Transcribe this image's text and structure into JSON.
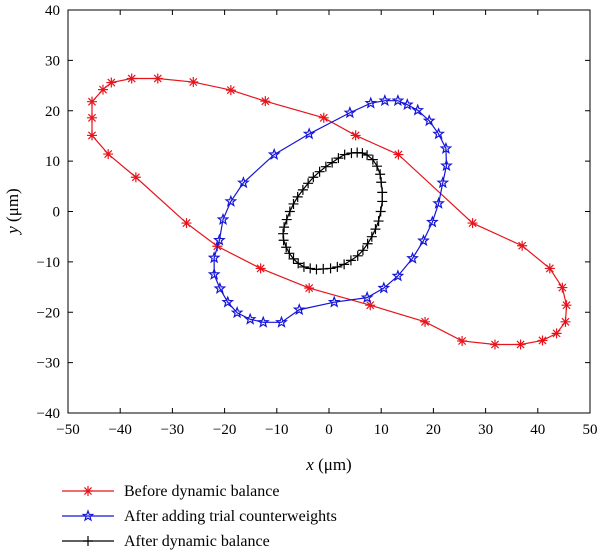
{
  "chart_data": {
    "type": "line",
    "title": "",
    "xlabel": {
      "var": "x",
      "unit": " (μm)"
    },
    "ylabel": {
      "var": "y",
      "unit": " (μm)"
    },
    "xlim": [
      -50,
      50
    ],
    "ylim": [
      -40,
      40
    ],
    "xticks": [
      -50,
      -40,
      -30,
      -20,
      -10,
      0,
      10,
      20,
      30,
      40,
      50
    ],
    "yticks": [
      -40,
      -30,
      -20,
      -10,
      0,
      10,
      20,
      30,
      40
    ],
    "xtick_labels": [
      "−50",
      "−40",
      "−30",
      "−20",
      "−10",
      "0",
      "10",
      "20",
      "30",
      "40",
      "50"
    ],
    "ytick_labels": [
      "−40",
      "−30",
      "−20",
      "−10",
      "0",
      "10",
      "20",
      "30",
      "40"
    ],
    "grid": false,
    "legend_position": "below",
    "series": [
      {
        "name": "Before dynamic balance",
        "color": "#e8141c",
        "marker": "asterisk",
        "points": [
          [
            45.5,
            -18.6
          ],
          [
            45.3,
            -21.9
          ],
          [
            44.7,
            -15.1
          ],
          [
            43.6,
            -24.2
          ],
          [
            42.3,
            -11.3
          ],
          [
            40.9,
            -25.6
          ],
          [
            37.0,
            -6.8
          ],
          [
            36.7,
            -26.4
          ],
          [
            31.8,
            -26.4
          ],
          [
            27.5,
            -2.3
          ],
          [
            25.5,
            -25.7
          ],
          [
            18.4,
            -21.9
          ],
          [
            13.3,
            11.3
          ],
          [
            7.9,
            -18.6
          ],
          [
            5.1,
            15.1
          ],
          [
            -1.0,
            18.6
          ],
          [
            -3.8,
            -15.2
          ],
          [
            -12.2,
            21.9
          ],
          [
            -13.1,
            -11.3
          ],
          [
            -18.8,
            24.1
          ],
          [
            -21.4,
            -6.9
          ],
          [
            -26.0,
            25.7
          ],
          [
            -27.3,
            -2.3
          ],
          [
            -32.8,
            26.4
          ],
          [
            -37.8,
            26.4
          ],
          [
            -37.0,
            6.8
          ],
          [
            -41.7,
            25.6
          ],
          [
            -42.3,
            11.4
          ],
          [
            -43.3,
            24.2
          ],
          [
            -45.4,
            15.1
          ],
          [
            -45.4,
            21.8
          ],
          [
            -45.4,
            18.6
          ]
        ]
      },
      {
        "name": "After adding trial counterweights",
        "color": "#1515d8",
        "marker": "star",
        "points": [
          [
            22.5,
            9.1
          ],
          [
            22.4,
            12.5
          ],
          [
            21.8,
            5.7
          ],
          [
            21.0,
            15.4
          ],
          [
            21.0,
            1.6
          ],
          [
            19.8,
            -2.1
          ],
          [
            19.2,
            18.0
          ],
          [
            18.1,
            -5.8
          ],
          [
            17.0,
            20.1
          ],
          [
            16.0,
            -9.3
          ],
          [
            15.0,
            21.2
          ],
          [
            13.2,
            -12.8
          ],
          [
            13.2,
            22.0
          ],
          [
            10.7,
            22.0
          ],
          [
            10.5,
            -15.2
          ],
          [
            8.0,
            21.5
          ],
          [
            7.3,
            -17.1
          ],
          [
            4.0,
            19.6
          ],
          [
            1.0,
            -18.0
          ],
          [
            -3.8,
            15.4
          ],
          [
            -5.7,
            -19.5
          ],
          [
            -9.1,
            -22.0
          ],
          [
            -10.5,
            11.3
          ],
          [
            -12.6,
            -22.0
          ],
          [
            -15.1,
            -21.4
          ],
          [
            -16.4,
            5.7
          ],
          [
            -17.6,
            -20.1
          ],
          [
            -18.8,
            2.0
          ],
          [
            -19.4,
            -18.0
          ],
          [
            -20.3,
            -1.6
          ],
          [
            -20.9,
            -15.3
          ],
          [
            -21.0,
            -5.7
          ],
          [
            -22.0,
            -12.5
          ],
          [
            -22.0,
            -9.2
          ]
        ]
      },
      {
        "name": "After dynamic balance",
        "color": "#000000",
        "marker": "plus",
        "points": [
          [
            10.2,
            3.8
          ],
          [
            10.2,
            2.0
          ],
          [
            10.0,
            5.8
          ],
          [
            9.9,
            0.0
          ],
          [
            9.8,
            7.4
          ],
          [
            9.5,
            -1.9
          ],
          [
            9.2,
            9.0
          ],
          [
            8.9,
            -3.5
          ],
          [
            8.4,
            10.3
          ],
          [
            8.2,
            -5.0
          ],
          [
            7.3,
            11.2
          ],
          [
            7.4,
            -6.4
          ],
          [
            6.4,
            11.6
          ],
          [
            6.5,
            -7.7
          ],
          [
            5.4,
            11.7
          ],
          [
            5.5,
            -8.8
          ],
          [
            4.3,
            11.6
          ],
          [
            4.2,
            -9.7
          ],
          [
            3.0,
            11.3
          ],
          [
            2.9,
            -10.5
          ],
          [
            1.8,
            10.6
          ],
          [
            1.6,
            -11.0
          ],
          [
            0.6,
            9.7
          ],
          [
            0.3,
            -11.3
          ],
          [
            -0.6,
            8.9
          ],
          [
            -1.1,
            -11.4
          ],
          [
            -1.8,
            7.9
          ],
          [
            -2.4,
            -11.5
          ],
          [
            -3.0,
            6.8
          ],
          [
            -3.6,
            -11.3
          ],
          [
            -4.0,
            5.6
          ],
          [
            -4.8,
            -11.0
          ],
          [
            -5.0,
            4.3
          ],
          [
            -5.9,
            -10.3
          ],
          [
            -6.0,
            2.9
          ],
          [
            -6.8,
            -9.4
          ],
          [
            -6.8,
            1.5
          ],
          [
            -7.5,
            0.0
          ],
          [
            -7.6,
            -8.3
          ],
          [
            -8.1,
            -1.6
          ],
          [
            -8.2,
            -7.1
          ],
          [
            -8.6,
            -3.1
          ],
          [
            -8.7,
            -5.7
          ],
          [
            -8.8,
            -4.4
          ]
        ]
      }
    ]
  }
}
